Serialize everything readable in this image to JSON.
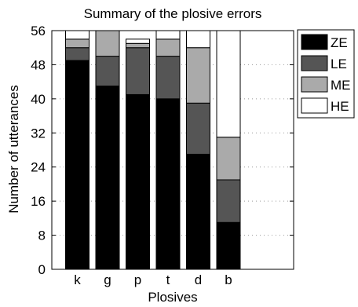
{
  "chart_data": {
    "type": "bar",
    "stacked": true,
    "title": "Summary of the plosive errors",
    "xlabel": "Plosives",
    "ylabel": "Number of utterances",
    "categories": [
      "k",
      "g",
      "p",
      "t",
      "d",
      "b"
    ],
    "ylim": [
      0,
      56
    ],
    "yticks": [
      0,
      8,
      16,
      24,
      32,
      40,
      48,
      56
    ],
    "grid": "dotted",
    "legend_position": "right",
    "series": [
      {
        "name": "ZE",
        "color": "#000000",
        "values": [
          49,
          43,
          41,
          40,
          27,
          11
        ]
      },
      {
        "name": "LE",
        "color": "#555555",
        "values": [
          3,
          7,
          11,
          10,
          12,
          10
        ]
      },
      {
        "name": "ME",
        "color": "#aaaaaa",
        "values": [
          2,
          6,
          1,
          4,
          13,
          10
        ]
      },
      {
        "name": "HE",
        "color": "#ffffff",
        "values": [
          2,
          0,
          1,
          2,
          4,
          25
        ]
      }
    ]
  }
}
